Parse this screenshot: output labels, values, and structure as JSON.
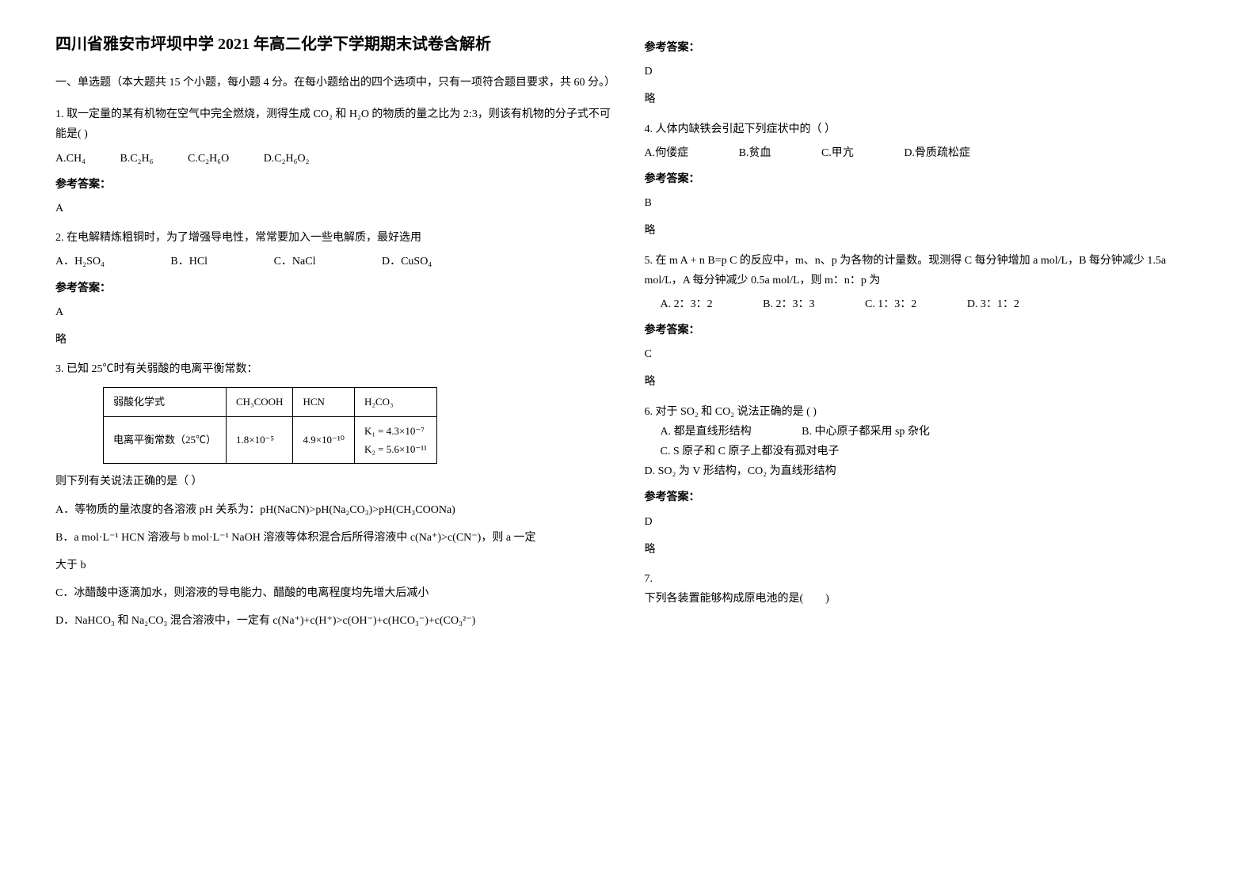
{
  "title": "四川省雅安市坪坝中学 2021 年高二化学下学期期末试卷含解析",
  "section_heading": "一、单选题（本大题共 15 个小题，每小题 4 分。在每小题给出的四个选项中，只有一项符合题目要求，共 60 分。）",
  "answer_label": "参考答案：",
  "lue": "略",
  "q1": {
    "text": "1. 取一定量的某有机物在空气中完全燃烧，测得生成 CO₂ 和 H₂O 的物质的量之比为 2:3，则该有机物的分子式不可能是(    )",
    "opt_a": "A.CH₄",
    "opt_b": "B.C₂H₆",
    "opt_c": "C.C₂H₆O",
    "opt_d": "D.C₂H₆O₂",
    "answer": "A"
  },
  "q2": {
    "text": "2. 在电解精炼粗铜时，为了增强导电性，常常要加入一些电解质，最好选用",
    "opt_a": "A．H₂SO₄",
    "opt_b": "B．HCl",
    "opt_c": "C．NaCl",
    "opt_d": "D．CuSO₄",
    "answer": "A"
  },
  "q3": {
    "text": "3. 已知 25℃时有关弱酸的电离平衡常数：",
    "table": {
      "h1": "弱酸化学式",
      "h2": "CH₃COOH",
      "h3": "HCN",
      "h4": "H₂CO₃",
      "r1": "电离平衡常数（25℃）",
      "r2": "1.8×10⁻⁵",
      "r3": "4.9×10⁻¹⁰",
      "r4_1": "K₁ = 4.3×10⁻⁷",
      "r4_2": "K₂ = 5.6×10⁻¹¹"
    },
    "sub": "则下列有关说法正确的是（   ）",
    "opt_a": "A．等物质的量浓度的各溶液 pH 关系为：pH(NaCN)>pH(Na₂CO₃)>pH(CH₃COONa)",
    "opt_b_1": "B．a mol·L⁻¹ HCN 溶液与 b mol·L⁻¹ NaOH 溶液等体积混合后所得溶液中 c(Na⁺)>c(CN⁻)，则 a 一定",
    "opt_b_2": "大于 b",
    "opt_c": "C．冰醋酸中逐滴加水，则溶液的导电能力、醋酸的电离程度均先增大后减小",
    "opt_d": "D．NaHCO₃ 和 Na₂CO₃ 混合溶液中，一定有 c(Na⁺)+c(H⁺)>c(OH⁻)+c(HCO₃⁻)+c(CO₃²⁻)",
    "answer": "D"
  },
  "q4": {
    "text": "4. 人体内缺铁会引起下列症状中的（    ）",
    "opt_a": "A.佝偻症",
    "opt_b": "B.贫血",
    "opt_c": "C.甲亢",
    "opt_d": "D.骨质疏松症",
    "answer": "B"
  },
  "q5": {
    "text": "5. 在 m A + n B=p C 的反应中，m、n、p 为各物的计量数。现测得 C 每分钟增加 a mol/L，B 每分钟减少 1.5a mol/L，A 每分钟减少 0.5a mol/L，则 m：n：p 为",
    "opt_a": "A. 2：3：2",
    "opt_b": "B. 2：3：3",
    "opt_c": "C. 1：3：2",
    "opt_d": "D. 3：1：2",
    "answer": "C"
  },
  "q6": {
    "text": "6. 对于 SO₂ 和 CO₂ 说法正确的是               (    )",
    "opt_a": "A. 都是直线形结构",
    "opt_b": "B. 中心原子都采用 sp 杂化",
    "opt_c": "C. S 原子和 C 原子上都没有孤对电子",
    "opt_d": "D. SO₂ 为 V 形结构，CO₂ 为直线形结构",
    "answer": "D"
  },
  "q7": {
    "num": "7.",
    "text": "下列各装置能够构成原电池的是(　　)"
  }
}
